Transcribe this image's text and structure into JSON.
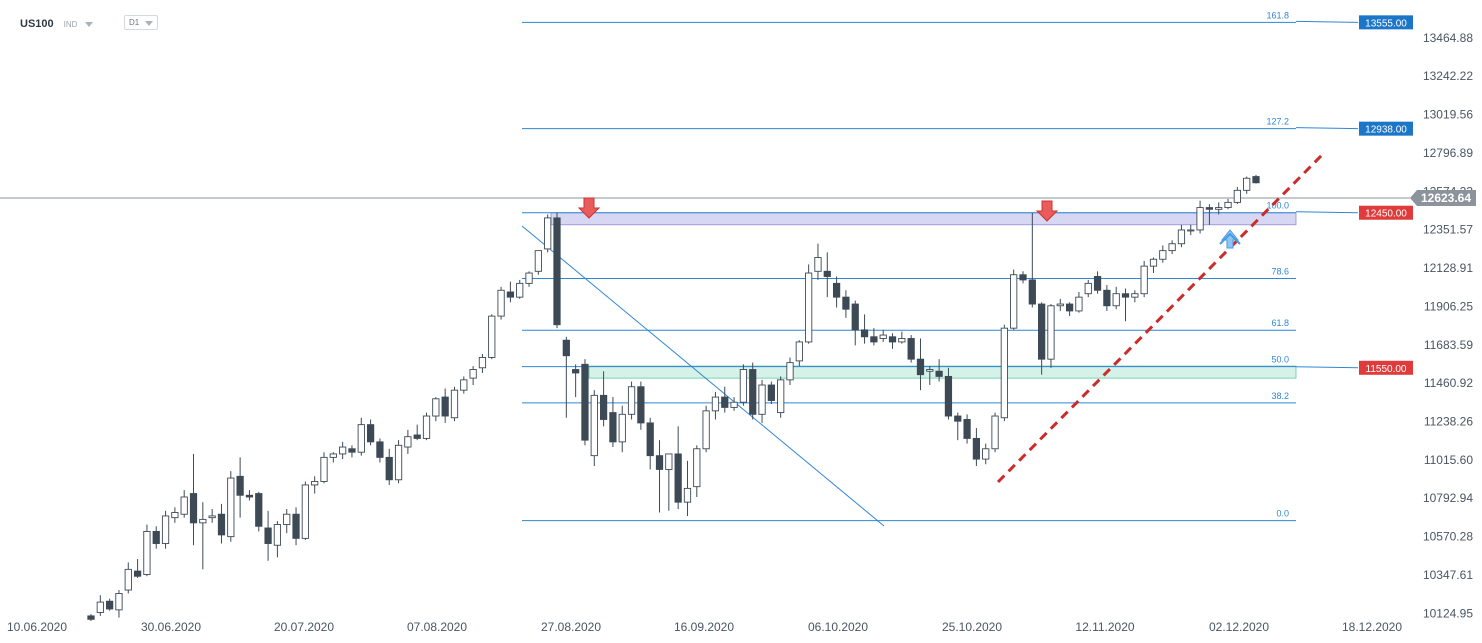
{
  "header": {
    "symbol": "US100",
    "instrument_type": "IND",
    "timeframe": "D1"
  },
  "chart_data": {
    "type": "candlestick",
    "symbol": "US100",
    "timeframe": "D1",
    "y_axis": {
      "ticks": [
        "13464.88",
        "13242.22",
        "13019.56",
        "12796.89",
        "12574.23",
        "12351.57",
        "12128.91",
        "11906.25",
        "11683.59",
        "11460.92",
        "11238.26",
        "11015.60",
        "10792.94",
        "10570.28",
        "10347.61",
        "10124.95"
      ],
      "range": [
        10100,
        13620
      ]
    },
    "x_axis": {
      "ticks": [
        "10.06.2020",
        "30.06.2020",
        "20.07.2020",
        "07.08.2020",
        "27.08.2020",
        "16.09.2020",
        "06.10.2020",
        "25.10.2020",
        "12.11.2020",
        "02.12.2020",
        "18.12.2020"
      ]
    },
    "current_price": "12623.64",
    "fibonacci": {
      "levels": [
        {
          "label": "161.8",
          "price": 13555
        },
        {
          "label": "127.2",
          "price": 12938
        },
        {
          "label": "100.0",
          "price": 12450
        },
        {
          "label": "78.6",
          "price": 12068
        },
        {
          "label": "61.8",
          "price": 11768
        },
        {
          "label": "50.0",
          "price": 11557
        },
        {
          "label": "38.2",
          "price": 11346
        },
        {
          "label": "0.0",
          "price": 10663
        }
      ]
    },
    "price_tags": [
      {
        "value": "13555.00",
        "price": 13555,
        "color": "#1c76c8"
      },
      {
        "value": "12938.00",
        "price": 12938,
        "color": "#1c76c8"
      },
      {
        "value": "12450.00",
        "price": 12450,
        "color": "#e03b3b"
      },
      {
        "value": "11550.00",
        "price": 11550,
        "color": "#e03b3b"
      }
    ],
    "zones": [
      {
        "name": "resistance",
        "from": 12380,
        "to": 12450,
        "color": "#c9c9ef"
      },
      {
        "name": "support",
        "from": 11490,
        "to": 11560,
        "color": "#c8eee0"
      }
    ],
    "candles": [
      {
        "o": 10110,
        "h": 10120,
        "l": 10080,
        "c": 10090
      },
      {
        "o": 10130,
        "h": 10230,
        "l": 10110,
        "c": 10190
      },
      {
        "o": 10195,
        "h": 10210,
        "l": 10140,
        "c": 10150
      },
      {
        "o": 10145,
        "h": 10260,
        "l": 10100,
        "c": 10240
      },
      {
        "o": 10260,
        "h": 10420,
        "l": 10240,
        "c": 10380
      },
      {
        "o": 10370,
        "h": 10440,
        "l": 10330,
        "c": 10340
      },
      {
        "o": 10350,
        "h": 10640,
        "l": 10340,
        "c": 10600
      },
      {
        "o": 10600,
        "h": 10630,
        "l": 10500,
        "c": 10530
      },
      {
        "o": 10530,
        "h": 10720,
        "l": 10500,
        "c": 10690
      },
      {
        "o": 10680,
        "h": 10740,
        "l": 10650,
        "c": 10710
      },
      {
        "o": 10700,
        "h": 10840,
        "l": 10680,
        "c": 10800
      },
      {
        "o": 10820,
        "h": 11050,
        "l": 10520,
        "c": 10650
      },
      {
        "o": 10650,
        "h": 10770,
        "l": 10380,
        "c": 10670
      },
      {
        "o": 10680,
        "h": 10730,
        "l": 10650,
        "c": 10690
      },
      {
        "o": 10700,
        "h": 10760,
        "l": 10530,
        "c": 10580
      },
      {
        "o": 10570,
        "h": 10950,
        "l": 10540,
        "c": 10910
      },
      {
        "o": 10920,
        "h": 11030,
        "l": 10680,
        "c": 10810
      },
      {
        "o": 10810,
        "h": 10840,
        "l": 10780,
        "c": 10800
      },
      {
        "o": 10820,
        "h": 10830,
        "l": 10600,
        "c": 10630
      },
      {
        "o": 10620,
        "h": 10720,
        "l": 10430,
        "c": 10530
      },
      {
        "o": 10520,
        "h": 10660,
        "l": 10450,
        "c": 10640
      },
      {
        "o": 10640,
        "h": 10730,
        "l": 10590,
        "c": 10700
      },
      {
        "o": 10700,
        "h": 10740,
        "l": 10520,
        "c": 10560
      },
      {
        "o": 10560,
        "h": 10890,
        "l": 10550,
        "c": 10870
      },
      {
        "o": 10870,
        "h": 10920,
        "l": 10820,
        "c": 10890
      },
      {
        "o": 10890,
        "h": 11060,
        "l": 10880,
        "c": 11030
      },
      {
        "o": 11030,
        "h": 11060,
        "l": 11000,
        "c": 11050
      },
      {
        "o": 11050,
        "h": 11120,
        "l": 11020,
        "c": 11090
      },
      {
        "o": 11080,
        "h": 11100,
        "l": 11030,
        "c": 11060
      },
      {
        "o": 11060,
        "h": 11260,
        "l": 11040,
        "c": 11220
      },
      {
        "o": 11220,
        "h": 11250,
        "l": 11100,
        "c": 11120
      },
      {
        "o": 11120,
        "h": 11140,
        "l": 11000,
        "c": 11030
      },
      {
        "o": 11030,
        "h": 11080,
        "l": 10870,
        "c": 10900
      },
      {
        "o": 10900,
        "h": 11130,
        "l": 10880,
        "c": 11100
      },
      {
        "o": 11090,
        "h": 11190,
        "l": 11050,
        "c": 11150
      },
      {
        "o": 11160,
        "h": 11220,
        "l": 11130,
        "c": 11140
      },
      {
        "o": 11140,
        "h": 11290,
        "l": 11130,
        "c": 11270
      },
      {
        "o": 11270,
        "h": 11380,
        "l": 11240,
        "c": 11370
      },
      {
        "o": 11380,
        "h": 11430,
        "l": 11230,
        "c": 11270
      },
      {
        "o": 11260,
        "h": 11440,
        "l": 11240,
        "c": 11420
      },
      {
        "o": 11420,
        "h": 11500,
        "l": 11400,
        "c": 11480
      },
      {
        "o": 11490,
        "h": 11560,
        "l": 11450,
        "c": 11540
      },
      {
        "o": 11550,
        "h": 11630,
        "l": 11520,
        "c": 11610
      },
      {
        "o": 11610,
        "h": 11860,
        "l": 11600,
        "c": 11850
      },
      {
        "o": 11850,
        "h": 12020,
        "l": 11830,
        "c": 12000
      },
      {
        "o": 11990,
        "h": 12050,
        "l": 11930,
        "c": 11960
      },
      {
        "o": 11960,
        "h": 12060,
        "l": 11950,
        "c": 12040
      },
      {
        "o": 12040,
        "h": 12110,
        "l": 12020,
        "c": 12100
      },
      {
        "o": 12110,
        "h": 12230,
        "l": 12090,
        "c": 12230
      },
      {
        "o": 12240,
        "h": 12440,
        "l": 12220,
        "c": 12420
      },
      {
        "o": 12420,
        "h": 12450,
        "l": 11780,
        "c": 11800
      },
      {
        "o": 11710,
        "h": 11730,
        "l": 11260,
        "c": 11620
      },
      {
        "o": 11540,
        "h": 11570,
        "l": 11380,
        "c": 11520
      },
      {
        "o": 11570,
        "h": 11600,
        "l": 11100,
        "c": 11130
      },
      {
        "o": 11040,
        "h": 11420,
        "l": 10980,
        "c": 11390
      },
      {
        "o": 11390,
        "h": 11530,
        "l": 11210,
        "c": 11250
      },
      {
        "o": 11290,
        "h": 11380,
        "l": 11090,
        "c": 11120
      },
      {
        "o": 11120,
        "h": 11330,
        "l": 11060,
        "c": 11280
      },
      {
        "o": 11280,
        "h": 11470,
        "l": 11250,
        "c": 11440
      },
      {
        "o": 11440,
        "h": 11470,
        "l": 11190,
        "c": 11230
      },
      {
        "o": 11230,
        "h": 11260,
        "l": 10960,
        "c": 11040
      },
      {
        "o": 11040,
        "h": 11130,
        "l": 10710,
        "c": 10960
      },
      {
        "o": 10960,
        "h": 11040,
        "l": 10720,
        "c": 11050
      },
      {
        "o": 11050,
        "h": 11210,
        "l": 10730,
        "c": 10770
      },
      {
        "o": 10770,
        "h": 11010,
        "l": 10690,
        "c": 10850
      },
      {
        "o": 10860,
        "h": 11100,
        "l": 10800,
        "c": 11080
      },
      {
        "o": 11080,
        "h": 11330,
        "l": 11060,
        "c": 11300
      },
      {
        "o": 11300,
        "h": 11410,
        "l": 11250,
        "c": 11380
      },
      {
        "o": 11380,
        "h": 11440,
        "l": 11290,
        "c": 11320
      },
      {
        "o": 11320,
        "h": 11380,
        "l": 11300,
        "c": 11350
      },
      {
        "o": 11350,
        "h": 11570,
        "l": 11330,
        "c": 11540
      },
      {
        "o": 11540,
        "h": 11580,
        "l": 11250,
        "c": 11280
      },
      {
        "o": 11280,
        "h": 11480,
        "l": 11230,
        "c": 11450
      },
      {
        "o": 11450,
        "h": 11470,
        "l": 11340,
        "c": 11360
      },
      {
        "o": 11290,
        "h": 11500,
        "l": 11260,
        "c": 11480
      },
      {
        "o": 11480,
        "h": 11610,
        "l": 11450,
        "c": 11580
      },
      {
        "o": 11590,
        "h": 11710,
        "l": 11560,
        "c": 11700
      },
      {
        "o": 11700,
        "h": 12150,
        "l": 11690,
        "c": 12100
      },
      {
        "o": 12110,
        "h": 12270,
        "l": 12060,
        "c": 12190
      },
      {
        "o": 12110,
        "h": 12220,
        "l": 11960,
        "c": 12080
      },
      {
        "o": 12040,
        "h": 12080,
        "l": 11900,
        "c": 11960
      },
      {
        "o": 11960,
        "h": 12000,
        "l": 11840,
        "c": 11890
      },
      {
        "o": 11920,
        "h": 11940,
        "l": 11680,
        "c": 11770
      },
      {
        "o": 11770,
        "h": 11860,
        "l": 11690,
        "c": 11730
      },
      {
        "o": 11730,
        "h": 11780,
        "l": 11680,
        "c": 11700
      },
      {
        "o": 11720,
        "h": 11770,
        "l": 11700,
        "c": 11740
      },
      {
        "o": 11730,
        "h": 11750,
        "l": 11660,
        "c": 11700
      },
      {
        "o": 11700,
        "h": 11760,
        "l": 11690,
        "c": 11720
      },
      {
        "o": 11720,
        "h": 11740,
        "l": 11580,
        "c": 11600
      },
      {
        "o": 11600,
        "h": 11720,
        "l": 11420,
        "c": 11510
      },
      {
        "o": 11530,
        "h": 11560,
        "l": 11450,
        "c": 11540
      },
      {
        "o": 11530,
        "h": 11600,
        "l": 11470,
        "c": 11500
      },
      {
        "o": 11500,
        "h": 11550,
        "l": 11250,
        "c": 11270
      },
      {
        "o": 11270,
        "h": 11290,
        "l": 11130,
        "c": 11240
      },
      {
        "o": 11250,
        "h": 11280,
        "l": 11110,
        "c": 11140
      },
      {
        "o": 11140,
        "h": 11200,
        "l": 10980,
        "c": 11020
      },
      {
        "o": 11020,
        "h": 11110,
        "l": 10990,
        "c": 11080
      },
      {
        "o": 11080,
        "h": 11290,
        "l": 11060,
        "c": 11270
      },
      {
        "o": 11260,
        "h": 11800,
        "l": 11240,
        "c": 11780
      },
      {
        "o": 11780,
        "h": 12120,
        "l": 11770,
        "c": 12090
      },
      {
        "o": 12090,
        "h": 12110,
        "l": 12040,
        "c": 12060
      },
      {
        "o": 12060,
        "h": 12450,
        "l": 11900,
        "c": 11920
      },
      {
        "o": 11920,
        "h": 11930,
        "l": 11510,
        "c": 11600
      },
      {
        "o": 11600,
        "h": 11920,
        "l": 11550,
        "c": 11910
      },
      {
        "o": 11910,
        "h": 11950,
        "l": 11880,
        "c": 11920
      },
      {
        "o": 11920,
        "h": 11930,
        "l": 11850,
        "c": 11880
      },
      {
        "o": 11880,
        "h": 11990,
        "l": 11870,
        "c": 11960
      },
      {
        "o": 11980,
        "h": 12060,
        "l": 11960,
        "c": 12040
      },
      {
        "o": 12080,
        "h": 12110,
        "l": 11980,
        "c": 12000
      },
      {
        "o": 12000,
        "h": 12030,
        "l": 11880,
        "c": 11910
      },
      {
        "o": 11910,
        "h": 12020,
        "l": 11890,
        "c": 11980
      },
      {
        "o": 11980,
        "h": 12010,
        "l": 11820,
        "c": 11960
      },
      {
        "o": 11960,
        "h": 12000,
        "l": 11930,
        "c": 11980
      },
      {
        "o": 11980,
        "h": 12170,
        "l": 11960,
        "c": 12140
      },
      {
        "o": 12140,
        "h": 12190,
        "l": 12100,
        "c": 12180
      },
      {
        "o": 12180,
        "h": 12260,
        "l": 12160,
        "c": 12230
      },
      {
        "o": 12230,
        "h": 12290,
        "l": 12210,
        "c": 12270
      },
      {
        "o": 12270,
        "h": 12380,
        "l": 12250,
        "c": 12350
      },
      {
        "o": 12350,
        "h": 12380,
        "l": 12320,
        "c": 12350
      },
      {
        "o": 12350,
        "h": 12520,
        "l": 12330,
        "c": 12480
      },
      {
        "o": 12480,
        "h": 12500,
        "l": 12380,
        "c": 12470
      },
      {
        "o": 12470,
        "h": 12510,
        "l": 12440,
        "c": 12480
      },
      {
        "o": 12480,
        "h": 12530,
        "l": 12470,
        "c": 12510
      },
      {
        "o": 12510,
        "h": 12600,
        "l": 12500,
        "c": 12580
      },
      {
        "o": 12580,
        "h": 12660,
        "l": 12560,
        "c": 12650
      },
      {
        "o": 12660,
        "h": 12670,
        "l": 12620,
        "c": 12624
      }
    ]
  }
}
